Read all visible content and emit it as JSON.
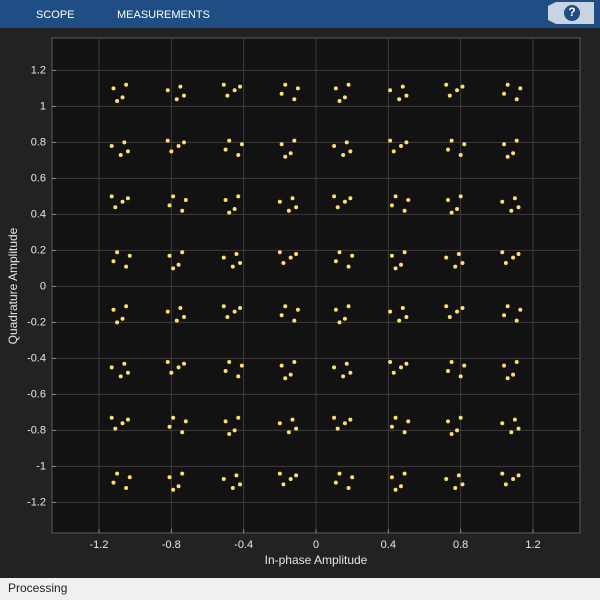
{
  "toolbar": {
    "tabs": [
      "SCOPE",
      "MEASUREMENTS"
    ],
    "help": "?"
  },
  "status": "Processing",
  "chart_data": {
    "type": "scatter",
    "xlabel": "In-phase Amplitude",
    "ylabel": "Quadrature Amplitude",
    "color": "#ffdf6b",
    "grid": true,
    "xlim": [
      -1.46,
      1.46
    ],
    "ylim": [
      -1.37,
      1.38
    ],
    "xticks": [
      -1.2,
      -0.8,
      -0.4,
      0,
      0.4,
      0.8,
      1.2
    ],
    "yticks": [
      -1.2,
      -1,
      -0.8,
      -0.6,
      -0.4,
      -0.2,
      0,
      0.2,
      0.4,
      0.6,
      0.8,
      1,
      1.2
    ],
    "x": [
      -1.12,
      -1.07,
      -1.05,
      -1.1,
      -0.75,
      -0.82,
      -0.77,
      -0.73,
      -0.49,
      -0.42,
      -0.45,
      -0.51,
      -0.12,
      -0.17,
      -0.19,
      -0.1,
      0.11,
      0.16,
      0.18,
      0.13,
      0.48,
      0.41,
      0.46,
      0.5,
      0.74,
      0.81,
      0.78,
      0.72,
      1.11,
      1.06,
      1.04,
      1.13,
      -1.06,
      -1.13,
      -1.08,
      -1.04,
      -0.8,
      -0.73,
      -0.76,
      -0.82,
      -0.43,
      -0.48,
      -0.5,
      -0.41,
      -0.19,
      -0.14,
      -0.12,
      -0.17,
      0.17,
      0.1,
      0.15,
      0.19,
      0.43,
      0.5,
      0.47,
      0.41,
      0.8,
      0.75,
      0.73,
      0.82,
      1.04,
      1.09,
      1.11,
      1.06,
      -1.11,
      -1.04,
      -1.07,
      -1.13,
      -0.74,
      -0.79,
      -0.81,
      -0.72,
      -0.5,
      -0.45,
      -0.43,
      -0.48,
      -0.13,
      -0.2,
      -0.15,
      -0.11,
      0.12,
      0.19,
      0.16,
      0.1,
      0.49,
      0.44,
      0.42,
      0.51,
      0.73,
      0.78,
      0.8,
      0.75,
      1.1,
      1.03,
      1.08,
      1.12,
      -1.05,
      -1.1,
      -1.12,
      -1.03,
      -0.81,
      -0.76,
      -0.74,
      -0.79,
      -0.44,
      -0.51,
      -0.46,
      -0.42,
      -0.18,
      -0.11,
      -0.14,
      -0.2,
      0.18,
      0.13,
      0.11,
      0.2,
      0.42,
      0.47,
      0.49,
      0.44,
      0.79,
      0.72,
      0.77,
      0.81,
      1.05,
      1.12,
      1.09,
      1.03,
      -1.12,
      -1.07,
      -1.05,
      -1.1,
      -0.75,
      -0.82,
      -0.77,
      -0.73,
      -0.49,
      -0.42,
      -0.45,
      -0.51,
      -0.12,
      -0.17,
      -0.19,
      -0.1,
      0.11,
      0.16,
      0.18,
      0.13,
      0.48,
      0.41,
      0.46,
      0.5,
      0.74,
      0.81,
      0.78,
      0.72,
      1.11,
      1.06,
      1.04,
      1.13,
      -1.06,
      -1.13,
      -1.08,
      -1.04,
      -0.8,
      -0.73,
      -0.76,
      -0.82,
      -0.43,
      -0.48,
      -0.5,
      -0.41,
      -0.19,
      -0.14,
      -0.12,
      -0.17,
      0.17,
      0.1,
      0.15,
      0.19,
      0.43,
      0.5,
      0.47,
      0.41,
      0.8,
      0.75,
      0.73,
      0.82,
      1.04,
      1.09,
      1.11,
      1.06,
      -1.11,
      -1.04,
      -1.07,
      -1.13,
      -0.74,
      -0.79,
      -0.81,
      -0.72,
      -0.5,
      -0.45,
      -0.43,
      -0.48,
      -0.13,
      -0.2,
      -0.15,
      -0.11,
      0.12,
      0.19,
      0.16,
      0.1,
      0.49,
      0.44,
      0.42,
      0.51,
      0.73,
      0.78,
      0.8,
      0.75,
      1.1,
      1.03,
      1.08,
      1.12,
      -1.05,
      -1.1,
      -1.12,
      -1.03,
      -0.81,
      -0.76,
      -0.74,
      -0.79,
      -0.44,
      -0.51,
      -0.46,
      -0.42,
      -0.18,
      -0.11,
      -0.14,
      -0.2,
      0.18,
      0.13,
      0.11,
      0.2,
      0.42,
      0.47,
      0.49,
      0.44,
      0.79,
      0.72,
      0.77,
      0.81,
      1.05,
      1.12,
      1.09,
      1.03
    ],
    "y": [
      1.1,
      1.05,
      1.12,
      1.03,
      1.11,
      1.09,
      1.04,
      1.06,
      1.06,
      1.11,
      1.09,
      1.12,
      1.04,
      1.12,
      1.07,
      1.1,
      1.1,
      1.05,
      1.12,
      1.03,
      1.11,
      1.09,
      1.04,
      1.06,
      1.06,
      1.11,
      1.09,
      1.12,
      1.04,
      1.12,
      1.07,
      1.1,
      0.8,
      0.78,
      0.73,
      0.75,
      0.75,
      0.8,
      0.78,
      0.81,
      0.73,
      0.81,
      0.76,
      0.79,
      0.79,
      0.74,
      0.81,
      0.72,
      0.8,
      0.78,
      0.73,
      0.75,
      0.75,
      0.8,
      0.78,
      0.81,
      0.73,
      0.81,
      0.76,
      0.79,
      0.79,
      0.74,
      0.81,
      0.72,
      0.44,
      0.49,
      0.47,
      0.5,
      0.42,
      0.5,
      0.45,
      0.48,
      0.48,
      0.43,
      0.5,
      0.41,
      0.49,
      0.47,
      0.42,
      0.44,
      0.44,
      0.49,
      0.47,
      0.5,
      0.42,
      0.5,
      0.45,
      0.48,
      0.48,
      0.43,
      0.5,
      0.41,
      0.49,
      0.47,
      0.42,
      0.44,
      0.11,
      0.19,
      0.14,
      0.17,
      0.17,
      0.12,
      0.19,
      0.1,
      0.18,
      0.16,
      0.11,
      0.13,
      0.13,
      0.18,
      0.16,
      0.19,
      0.11,
      0.19,
      0.14,
      0.17,
      0.17,
      0.12,
      0.19,
      0.1,
      0.18,
      0.16,
      0.11,
      0.13,
      0.13,
      0.18,
      0.16,
      0.19,
      -0.13,
      -0.18,
      -0.11,
      -0.2,
      -0.12,
      -0.14,
      -0.19,
      -0.17,
      -0.17,
      -0.12,
      -0.14,
      -0.11,
      -0.19,
      -0.11,
      -0.16,
      -0.13,
      -0.13,
      -0.18,
      -0.11,
      -0.2,
      -0.12,
      -0.14,
      -0.19,
      -0.17,
      -0.17,
      -0.12,
      -0.14,
      -0.11,
      -0.19,
      -0.11,
      -0.16,
      -0.13,
      -0.43,
      -0.45,
      -0.5,
      -0.48,
      -0.48,
      -0.43,
      -0.45,
      -0.42,
      -0.5,
      -0.42,
      -0.47,
      -0.44,
      -0.44,
      -0.49,
      -0.42,
      -0.51,
      -0.43,
      -0.45,
      -0.5,
      -0.48,
      -0.48,
      -0.43,
      -0.45,
      -0.42,
      -0.5,
      -0.42,
      -0.47,
      -0.44,
      -0.44,
      -0.49,
      -0.42,
      -0.51,
      -0.79,
      -0.74,
      -0.76,
      -0.73,
      -0.81,
      -0.73,
      -0.78,
      -0.75,
      -0.75,
      -0.8,
      -0.73,
      -0.82,
      -0.74,
      -0.76,
      -0.81,
      -0.79,
      -0.79,
      -0.74,
      -0.76,
      -0.73,
      -0.81,
      -0.73,
      -0.78,
      -0.75,
      -0.75,
      -0.8,
      -0.73,
      -0.82,
      -0.74,
      -0.76,
      -0.81,
      -0.79,
      -1.12,
      -1.04,
      -1.09,
      -1.06,
      -1.06,
      -1.11,
      -1.04,
      -1.13,
      -1.05,
      -1.07,
      -1.12,
      -1.1,
      -1.1,
      -1.05,
      -1.07,
      -1.04,
      -1.12,
      -1.04,
      -1.09,
      -1.06,
      -1.06,
      -1.11,
      -1.04,
      -1.13,
      -1.05,
      -1.07,
      -1.12,
      -1.1,
      -1.1,
      -1.05,
      -1.07,
      -1.04
    ]
  }
}
